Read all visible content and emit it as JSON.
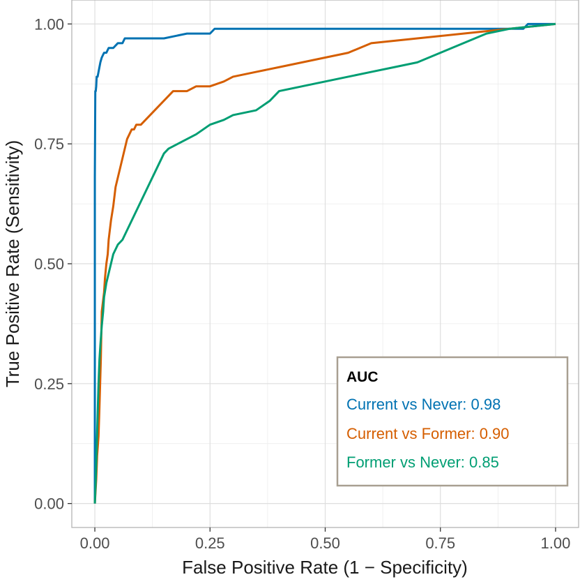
{
  "chart_data": {
    "type": "line",
    "xlabel": "False Positive Rate (1 − Specificity)",
    "ylabel": "True Positive Rate (Sensitivity)",
    "xlim": [
      -0.05,
      1.05
    ],
    "ylim": [
      -0.05,
      1.05
    ],
    "x_ticks": [
      0,
      0.25,
      0.5,
      0.75,
      1
    ],
    "y_ticks": [
      0,
      0.25,
      0.5,
      0.75,
      1
    ],
    "x_tick_labels": [
      "0.00",
      "0.25",
      "0.50",
      "0.75",
      "1.00"
    ],
    "y_tick_labels": [
      "0.00",
      "0.25",
      "0.50",
      "0.75",
      "1.00"
    ],
    "grid": true,
    "legend": {
      "title": "AUC",
      "placement": "bottom-right",
      "entries": [
        "Current vs Never: 0.98",
        "Current vs Former: 0.90",
        "Former vs Never: 0.85"
      ]
    },
    "series": [
      {
        "name": "Current vs Never: 0.98",
        "color": "#0072B2",
        "x": [
          0,
          0,
          0.001,
          0.002,
          0.003,
          0.004,
          0.006,
          0.008,
          0.01,
          0.012,
          0.015,
          0.02,
          0.025,
          0.03,
          0.04,
          0.05,
          0.06,
          0.065,
          0.1,
          0.15,
          0.2,
          0.25,
          0.26,
          0.4,
          0.6,
          0.8,
          0.93,
          0.94,
          1.0
        ],
        "y": [
          0,
          0.68,
          0.86,
          0.86,
          0.87,
          0.89,
          0.89,
          0.9,
          0.91,
          0.92,
          0.93,
          0.94,
          0.94,
          0.95,
          0.95,
          0.96,
          0.96,
          0.97,
          0.97,
          0.97,
          0.98,
          0.98,
          0.99,
          0.99,
          0.99,
          0.99,
          0.99,
          1.0,
          1.0
        ]
      },
      {
        "name": "Current vs Former: 0.90",
        "color": "#D55E00",
        "x": [
          0,
          0.003,
          0.005,
          0.008,
          0.01,
          0.013,
          0.015,
          0.02,
          0.022,
          0.025,
          0.028,
          0.03,
          0.035,
          0.04,
          0.045,
          0.05,
          0.055,
          0.06,
          0.065,
          0.07,
          0.075,
          0.08,
          0.085,
          0.09,
          0.1,
          0.11,
          0.12,
          0.13,
          0.14,
          0.15,
          0.16,
          0.17,
          0.18,
          0.2,
          0.22,
          0.25,
          0.28,
          0.3,
          0.35,
          0.4,
          0.45,
          0.5,
          0.55,
          0.6,
          0.7,
          0.8,
          0.9,
          1.0
        ],
        "y": [
          0,
          0.05,
          0.1,
          0.14,
          0.2,
          0.3,
          0.4,
          0.44,
          0.47,
          0.5,
          0.52,
          0.55,
          0.59,
          0.62,
          0.66,
          0.68,
          0.7,
          0.72,
          0.74,
          0.76,
          0.77,
          0.78,
          0.78,
          0.79,
          0.79,
          0.8,
          0.81,
          0.82,
          0.83,
          0.84,
          0.85,
          0.86,
          0.86,
          0.86,
          0.87,
          0.87,
          0.88,
          0.89,
          0.9,
          0.91,
          0.92,
          0.93,
          0.94,
          0.96,
          0.97,
          0.98,
          0.99,
          1.0
        ]
      },
      {
        "name": "Former vs Never: 0.85",
        "color": "#009E73",
        "x": [
          0,
          0.002,
          0.005,
          0.008,
          0.01,
          0.012,
          0.015,
          0.018,
          0.02,
          0.025,
          0.03,
          0.035,
          0.04,
          0.05,
          0.06,
          0.07,
          0.08,
          0.09,
          0.1,
          0.11,
          0.12,
          0.13,
          0.14,
          0.15,
          0.16,
          0.18,
          0.2,
          0.22,
          0.25,
          0.28,
          0.3,
          0.35,
          0.38,
          0.4,
          0.45,
          0.5,
          0.55,
          0.6,
          0.65,
          0.7,
          0.75,
          0.8,
          0.85,
          0.9,
          1.0
        ],
        "y": [
          0,
          0.05,
          0.15,
          0.25,
          0.3,
          0.33,
          0.37,
          0.4,
          0.43,
          0.46,
          0.48,
          0.5,
          0.52,
          0.54,
          0.55,
          0.57,
          0.59,
          0.61,
          0.63,
          0.65,
          0.67,
          0.69,
          0.71,
          0.73,
          0.74,
          0.75,
          0.76,
          0.77,
          0.79,
          0.8,
          0.81,
          0.82,
          0.84,
          0.86,
          0.87,
          0.88,
          0.89,
          0.9,
          0.91,
          0.92,
          0.94,
          0.96,
          0.98,
          0.99,
          1.0
        ]
      }
    ]
  }
}
